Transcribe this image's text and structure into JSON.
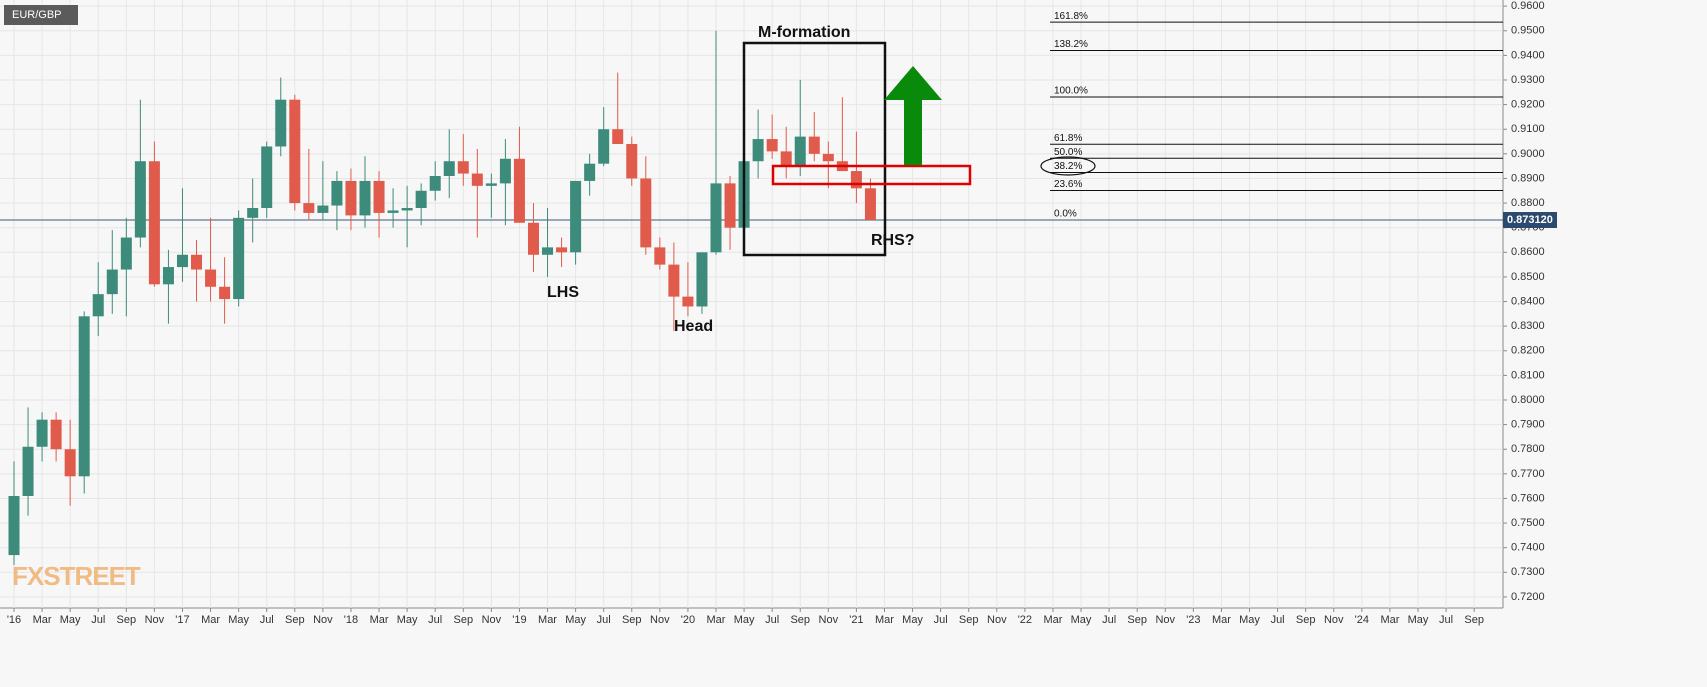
{
  "chart_data": {
    "type": "candlestick",
    "title": "EUR/GBP",
    "watermark": "FXSTREET",
    "up_color": "#3d8b7a",
    "down_color": "#e05b4b",
    "grid": true,
    "ylim": [
      0.7155,
      0.9625
    ],
    "yticks": [
      {
        "value": 0.72,
        "label": "0.7200"
      },
      {
        "value": 0.73,
        "label": "0.7300"
      },
      {
        "value": 0.74,
        "label": "0.7400"
      },
      {
        "value": 0.75,
        "label": "0.7500"
      },
      {
        "value": 0.76,
        "label": "0.7600"
      },
      {
        "value": 0.77,
        "label": "0.7700"
      },
      {
        "value": 0.78,
        "label": "0.7800"
      },
      {
        "value": 0.79,
        "label": "0.7900"
      },
      {
        "value": 0.8,
        "label": "0.8000"
      },
      {
        "value": 0.81,
        "label": "0.8100"
      },
      {
        "value": 0.82,
        "label": "0.8200"
      },
      {
        "value": 0.83,
        "label": "0.8300"
      },
      {
        "value": 0.84,
        "label": "0.8400"
      },
      {
        "value": 0.85,
        "label": "0.8500"
      },
      {
        "value": 0.86,
        "label": "0.8600"
      },
      {
        "value": 0.87,
        "label": "0.8700"
      },
      {
        "value": 0.88,
        "label": "0.8800"
      },
      {
        "value": 0.89,
        "label": "0.8900"
      },
      {
        "value": 0.9,
        "label": "0.9000"
      },
      {
        "value": 0.91,
        "label": "0.9100"
      },
      {
        "value": 0.92,
        "label": "0.9200"
      },
      {
        "value": 0.93,
        "label": "0.9300"
      },
      {
        "value": 0.94,
        "label": "0.9400"
      },
      {
        "value": 0.95,
        "label": "0.9500"
      },
      {
        "value": 0.96,
        "label": "0.9600"
      }
    ],
    "xticks": [
      "'16",
      "Mar",
      "May",
      "Jul",
      "Sep",
      "Nov",
      "'17",
      "Mar",
      "May",
      "Jul",
      "Sep",
      "Nov",
      "'18",
      "Mar",
      "May",
      "Jul",
      "Sep",
      "Nov",
      "'19",
      "Mar",
      "May",
      "Jul",
      "Sep",
      "Nov",
      "'20",
      "Mar",
      "May",
      "Jul",
      "Sep",
      "Nov",
      "'21",
      "Mar",
      "May",
      "Jul",
      "Sep",
      "Nov",
      "'22",
      "Mar",
      "May",
      "Jul",
      "Sep",
      "Nov",
      "'23",
      "Mar",
      "May",
      "Jul",
      "Sep",
      "Nov",
      "'24",
      "Mar",
      "May",
      "Jul",
      "Sep"
    ],
    "last_price": {
      "value": 0.87312,
      "label": "0.873120"
    },
    "candles": [
      {
        "open": 0.737,
        "high": 0.775,
        "low": 0.733,
        "close": 0.761
      },
      {
        "open": 0.761,
        "high": 0.797,
        "low": 0.753,
        "close": 0.781
      },
      {
        "open": 0.781,
        "high": 0.795,
        "low": 0.775,
        "close": 0.792
      },
      {
        "open": 0.792,
        "high": 0.795,
        "low": 0.775,
        "close": 0.78
      },
      {
        "open": 0.78,
        "high": 0.792,
        "low": 0.757,
        "close": 0.769
      },
      {
        "open": 0.769,
        "high": 0.836,
        "low": 0.762,
        "close": 0.834
      },
      {
        "open": 0.834,
        "high": 0.856,
        "low": 0.826,
        "close": 0.843
      },
      {
        "open": 0.843,
        "high": 0.869,
        "low": 0.835,
        "close": 0.853
      },
      {
        "open": 0.853,
        "high": 0.874,
        "low": 0.834,
        "close": 0.866
      },
      {
        "open": 0.866,
        "high": 0.922,
        "low": 0.862,
        "close": 0.897
      },
      {
        "open": 0.897,
        "high": 0.905,
        "low": 0.846,
        "close": 0.847
      },
      {
        "open": 0.847,
        "high": 0.861,
        "low": 0.831,
        "close": 0.854
      },
      {
        "open": 0.854,
        "high": 0.886,
        "low": 0.848,
        "close": 0.859
      },
      {
        "open": 0.859,
        "high": 0.865,
        "low": 0.84,
        "close": 0.853
      },
      {
        "open": 0.853,
        "high": 0.874,
        "low": 0.84,
        "close": 0.846
      },
      {
        "open": 0.846,
        "high": 0.858,
        "low": 0.831,
        "close": 0.841
      },
      {
        "open": 0.841,
        "high": 0.877,
        "low": 0.838,
        "close": 0.874
      },
      {
        "open": 0.874,
        "high": 0.89,
        "low": 0.864,
        "close": 0.878
      },
      {
        "open": 0.878,
        "high": 0.905,
        "low": 0.874,
        "close": 0.903
      },
      {
        "open": 0.903,
        "high": 0.931,
        "low": 0.899,
        "close": 0.922
      },
      {
        "open": 0.922,
        "high": 0.924,
        "low": 0.877,
        "close": 0.88
      },
      {
        "open": 0.88,
        "high": 0.902,
        "low": 0.873,
        "close": 0.876
      },
      {
        "open": 0.876,
        "high": 0.897,
        "low": 0.873,
        "close": 0.879
      },
      {
        "open": 0.879,
        "high": 0.893,
        "low": 0.869,
        "close": 0.889
      },
      {
        "open": 0.889,
        "high": 0.894,
        "low": 0.869,
        "close": 0.875
      },
      {
        "open": 0.875,
        "high": 0.899,
        "low": 0.87,
        "close": 0.889
      },
      {
        "open": 0.889,
        "high": 0.893,
        "low": 0.866,
        "close": 0.876
      },
      {
        "open": 0.876,
        "high": 0.886,
        "low": 0.87,
        "close": 0.877
      },
      {
        "open": 0.877,
        "high": 0.887,
        "low": 0.862,
        "close": 0.878
      },
      {
        "open": 0.878,
        "high": 0.888,
        "low": 0.871,
        "close": 0.885
      },
      {
        "open": 0.885,
        "high": 0.897,
        "low": 0.881,
        "close": 0.891
      },
      {
        "open": 0.891,
        "high": 0.91,
        "low": 0.882,
        "close": 0.897
      },
      {
        "open": 0.897,
        "high": 0.908,
        "low": 0.887,
        "close": 0.892
      },
      {
        "open": 0.892,
        "high": 0.902,
        "low": 0.866,
        "close": 0.887
      },
      {
        "open": 0.887,
        "high": 0.892,
        "low": 0.874,
        "close": 0.888
      },
      {
        "open": 0.888,
        "high": 0.906,
        "low": 0.871,
        "close": 0.898
      },
      {
        "open": 0.898,
        "high": 0.911,
        "low": 0.872,
        "close": 0.872
      },
      {
        "open": 0.872,
        "high": 0.88,
        "low": 0.852,
        "close": 0.859
      },
      {
        "open": 0.859,
        "high": 0.878,
        "low": 0.85,
        "close": 0.862
      },
      {
        "open": 0.862,
        "high": 0.866,
        "low": 0.854,
        "close": 0.86
      },
      {
        "open": 0.86,
        "high": 0.889,
        "low": 0.855,
        "close": 0.889
      },
      {
        "open": 0.889,
        "high": 0.9,
        "low": 0.883,
        "close": 0.896
      },
      {
        "open": 0.896,
        "high": 0.919,
        "low": 0.895,
        "close": 0.91
      },
      {
        "open": 0.91,
        "high": 0.933,
        "low": 0.904,
        "close": 0.904
      },
      {
        "open": 0.904,
        "high": 0.907,
        "low": 0.887,
        "close": 0.89
      },
      {
        "open": 0.89,
        "high": 0.899,
        "low": 0.859,
        "close": 0.862
      },
      {
        "open": 0.862,
        "high": 0.866,
        "low": 0.853,
        "close": 0.855
      },
      {
        "open": 0.855,
        "high": 0.864,
        "low": 0.828,
        "close": 0.842
      },
      {
        "open": 0.842,
        "high": 0.856,
        "low": 0.834,
        "close": 0.838
      },
      {
        "open": 0.838,
        "high": 0.86,
        "low": 0.835,
        "close": 0.86
      },
      {
        "open": 0.86,
        "high": 0.95,
        "low": 0.859,
        "close": 0.888
      },
      {
        "open": 0.888,
        "high": 0.891,
        "low": 0.861,
        "close": 0.87
      },
      {
        "open": 0.87,
        "high": 0.909,
        "low": 0.867,
        "close": 0.897
      },
      {
        "open": 0.897,
        "high": 0.918,
        "low": 0.89,
        "close": 0.906
      },
      {
        "open": 0.906,
        "high": 0.916,
        "low": 0.898,
        "close": 0.901
      },
      {
        "open": 0.901,
        "high": 0.911,
        "low": 0.89,
        "close": 0.895
      },
      {
        "open": 0.895,
        "high": 0.93,
        "low": 0.891,
        "close": 0.907
      },
      {
        "open": 0.907,
        "high": 0.917,
        "low": 0.897,
        "close": 0.9
      },
      {
        "open": 0.9,
        "high": 0.905,
        "low": 0.886,
        "close": 0.897
      },
      {
        "open": 0.897,
        "high": 0.923,
        "low": 0.893,
        "close": 0.893
      },
      {
        "open": 0.893,
        "high": 0.909,
        "low": 0.88,
        "close": 0.886
      },
      {
        "open": 0.886,
        "high": 0.89,
        "low": 0.873,
        "close": 0.87312
      }
    ],
    "fib_levels": [
      {
        "label": "161.8%",
        "value": 0.9535
      },
      {
        "label": "138.2%",
        "value": 0.942
      },
      {
        "label": "100.0%",
        "value": 0.9231
      },
      {
        "label": "61.8%",
        "value": 0.9039
      },
      {
        "label": "50.0%",
        "value": 0.8982
      },
      {
        "label": "38.2%",
        "value": 0.8924
      },
      {
        "label": "23.6%",
        "value": 0.8851
      },
      {
        "label": "0.0%",
        "value": 0.8731
      }
    ],
    "annotations": {
      "m_formation": "M-formation",
      "lhs": "LHS",
      "head": "Head",
      "rhs": "RHS?"
    }
  }
}
